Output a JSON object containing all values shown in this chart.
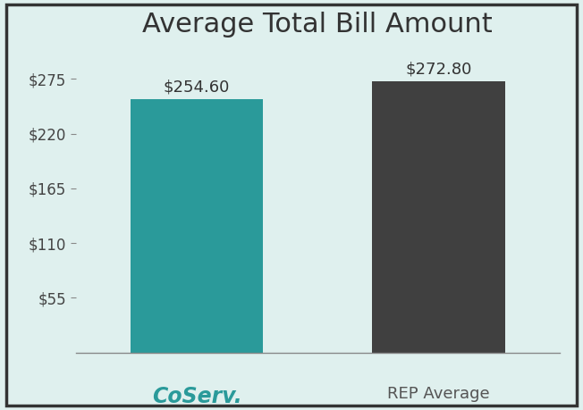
{
  "title": "Average Total Bill Amount",
  "categories": [
    "CoServ.",
    "REP Average"
  ],
  "values": [
    254.6,
    272.8
  ],
  "bar_colors": [
    "#2a9a9a",
    "#404040"
  ],
  "bar_labels": [
    "$254.60",
    "$272.80"
  ],
  "yticks": [
    55,
    110,
    165,
    220,
    275
  ],
  "ytick_labels": [
    "$55",
    "$110",
    "$165",
    "$220",
    "$275"
  ],
  "ylim": [
    0,
    305
  ],
  "background_color": "#dff0ee",
  "title_fontsize": 22,
  "label_fontsize": 13,
  "tick_fontsize": 12,
  "coserv_color": "#2a9a9a",
  "coserv_label_fontsize": 17,
  "rep_label_fontsize": 13,
  "border_color": "#333333"
}
